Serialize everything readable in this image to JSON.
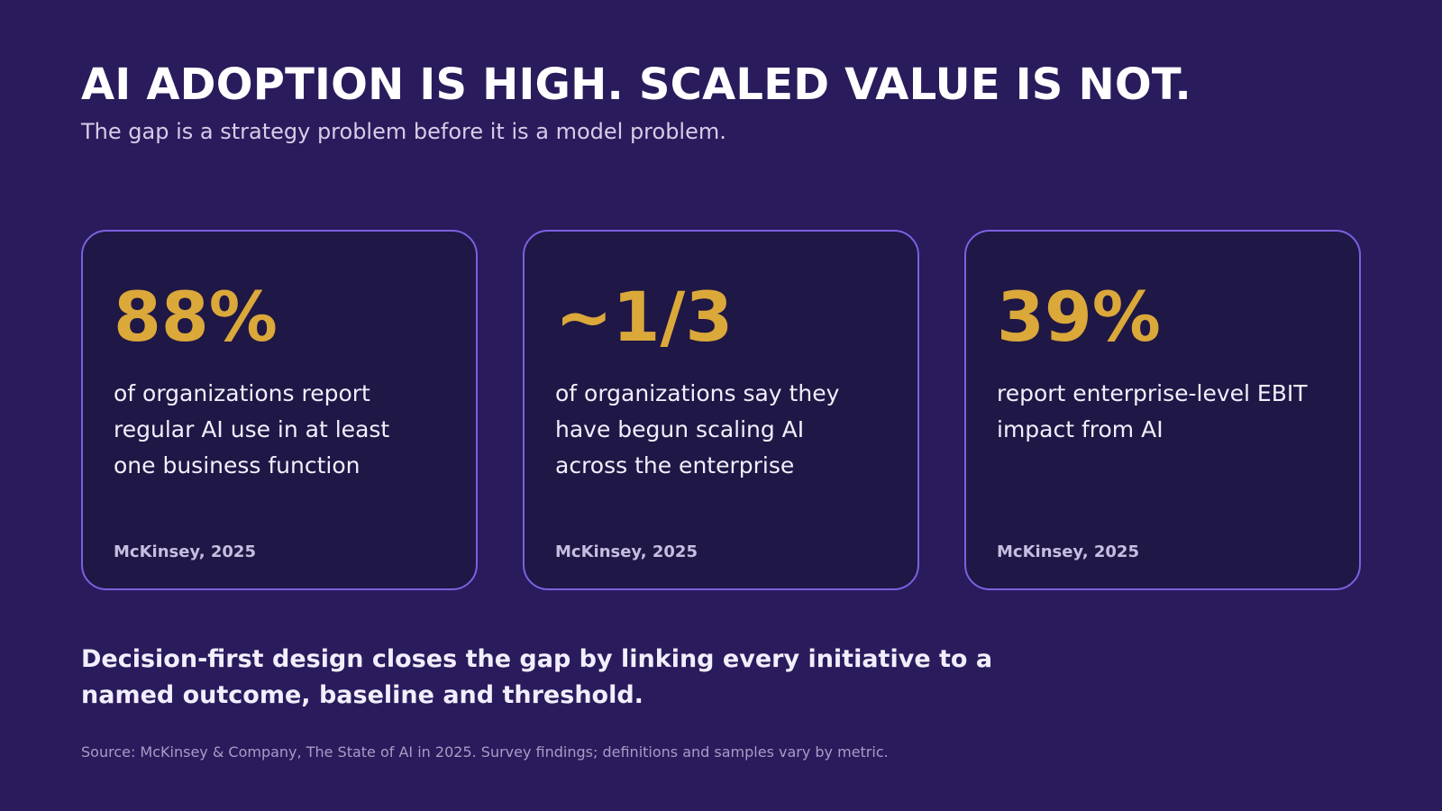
{
  "slide": {
    "title": "AI ADOPTION IS HIGH. SCALED VALUE IS NOT.",
    "subtitle": "The gap is a strategy problem before it is a model problem.",
    "cards": [
      {
        "stat": "88%",
        "description": "of organizations report regular AI use in at least one business function",
        "citation": "McKinsey, 2025"
      },
      {
        "stat": "~1/3",
        "description": "of organizations say they have begun scaling AI across the enterprise",
        "citation": "McKinsey, 2025"
      },
      {
        "stat": "39%",
        "description": "report enterprise-level EBIT impact from AI",
        "citation": "McKinsey, 2025"
      }
    ],
    "takeaway": "Decision-first design closes the gap by linking every initiative to a named outcome, baseline and threshold.",
    "source": "Source: McKinsey & Company, The State of AI in 2025. Survey findings; definitions and samples vary by metric."
  },
  "colors": {
    "background": "#2a1b5c",
    "card_background": "#1f1745",
    "card_border": "#7b61e0",
    "stat_accent": "#dba83a",
    "title_text": "#ffffff",
    "subtitle_text": "#d6cde8",
    "source_text": "#a89cc6"
  }
}
